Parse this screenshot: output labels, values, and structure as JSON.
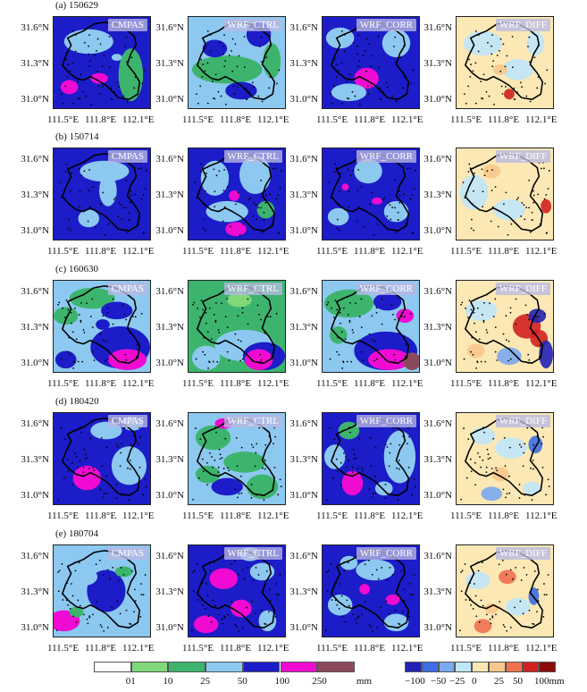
{
  "rows": [
    {
      "label": "(a) 150629"
    },
    {
      "label": "(b) 150714"
    },
    {
      "label": "(c) 160630"
    },
    {
      "label": "(d) 180420"
    },
    {
      "label": "(e) 180704"
    }
  ],
  "panel_titles": [
    "CMPAS",
    "WRF_CTRL",
    "WRF_CORR",
    "WRF_DIFF"
  ],
  "y_ticks": [
    "31.6°N",
    "31.3°N",
    "31.0°N"
  ],
  "x_ticks": [
    "111.5°E",
    "111.8°E",
    "112.1°E"
  ],
  "colorbar_precip": {
    "labels": [
      "01",
      "10",
      "25",
      "50",
      "100",
      "250"
    ],
    "unit": "mm",
    "colors": [
      "#ffffff",
      "#7fd97a",
      "#3cb46e",
      "#8cc8f0",
      "#1c1cc8",
      "#f00ad2",
      "#8b4a5a"
    ]
  },
  "colorbar_diff": {
    "labels": [
      "−100",
      "−50",
      "−25",
      "0",
      "25",
      "50",
      "100mm"
    ],
    "colors": [
      "#2222b4",
      "#3c6ee6",
      "#7aaaf0",
      "#bfe6f8",
      "#fbe8b4",
      "#f8c88a",
      "#f07050",
      "#d22020",
      "#8c0a0a"
    ]
  }
}
